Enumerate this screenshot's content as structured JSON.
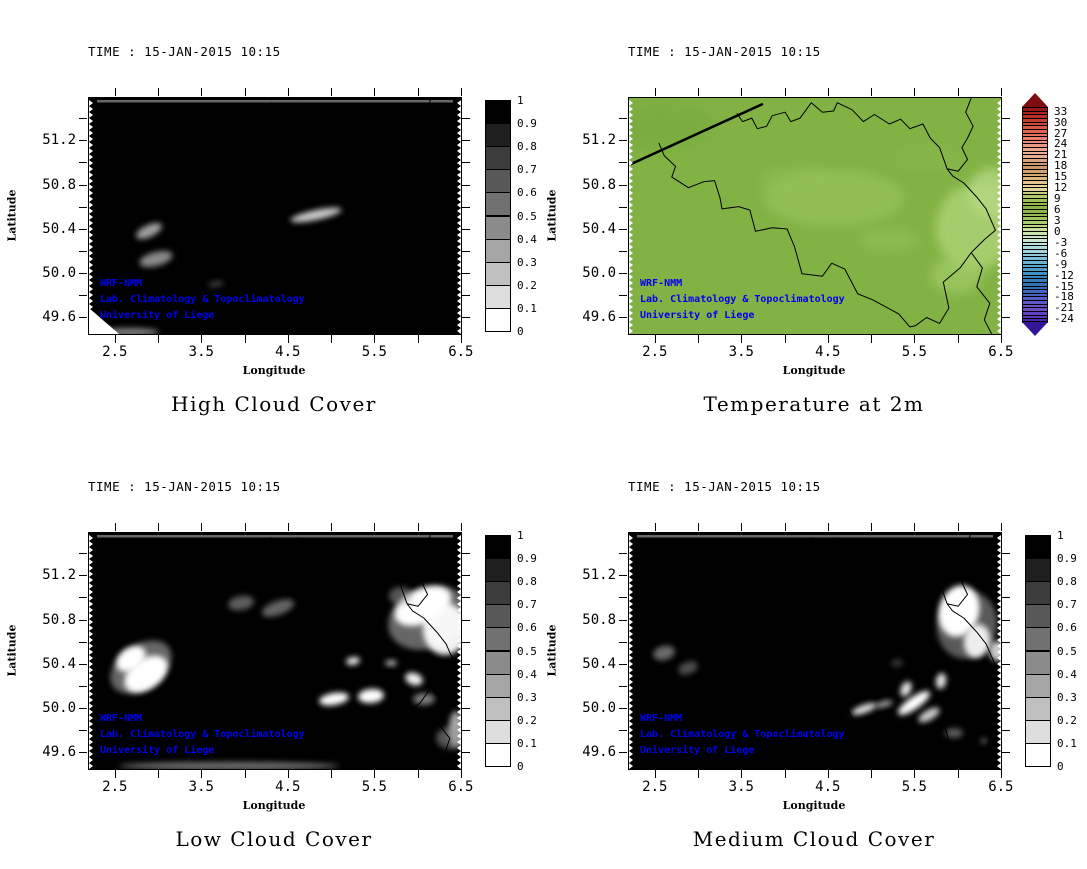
{
  "figure": {
    "description": "WRF-NMM model output, 2x2 grid of maps over Belgium for 15-JAN-2015 10:15",
    "watermark_color": "#0000ee",
    "background": "#ffffff"
  },
  "chart_data": [
    {
      "type": "heatmap",
      "panel": "top-left",
      "title": "High Cloud Cover",
      "time": "TIME : 15-JAN-2015 10:15",
      "xlabel": "Longitude",
      "ylabel": "Latitude",
      "xlim": [
        2.19,
        6.49
      ],
      "ylim": [
        49.46,
        51.59
      ],
      "x_ticks": [
        2.5,
        3.0,
        3.5,
        4.0,
        4.5,
        5.0,
        5.5,
        6.0,
        6.5
      ],
      "x_tick_labels": {
        "2.5": "2.5",
        "3.5": "3.5",
        "4.5": "4.5",
        "5.5": "5.5",
        "6.5": "6.5"
      },
      "y_ticks": [
        49.6,
        49.8,
        50.0,
        50.2,
        50.4,
        50.6,
        50.8,
        51.0,
        51.2,
        51.4
      ],
      "y_tick_labels": {
        "49.6": "49.6",
        "50": "50.0",
        "50.4": "50.4",
        "50.8": "50.8",
        "51.2": "51.2"
      },
      "colorbar": "cloud",
      "base_color": "#000000",
      "top_band": true,
      "corner_wedge": true,
      "field_summary": "Near-total high cloud cover (~1.0) everywhere; tiny brighter gaps near (3.0,50.4),(3.0,50.2),(3.5,50.1) and an elongated gap streak near (4.8,50.5); clear wedge at SW corner.",
      "features": [
        [
          60,
          133,
          14,
          6,
          -25,
          0.75,
          "#d4d4d4"
        ],
        [
          67,
          161,
          17,
          7,
          -15,
          0.7,
          "#c2c2c2"
        ],
        [
          127,
          186,
          8,
          3,
          -10,
          0.4,
          "#9a9a9a"
        ],
        [
          227,
          117,
          26,
          5,
          -12,
          0.85,
          "#ececec"
        ],
        [
          40,
          234,
          30,
          4,
          0,
          0.5,
          "#ffffff"
        ]
      ],
      "watermark": [
        "WRF-NMM",
        "Lab. Climatology & Topoclimatology",
        "University of Liege"
      ]
    },
    {
      "type": "heatmap",
      "panel": "top-right",
      "title": "Temperature at 2m",
      "time": "TIME : 15-JAN-2015 10:15",
      "xlabel": "Longitude",
      "ylabel": "Latitude",
      "xlim": [
        2.19,
        6.49
      ],
      "ylim": [
        49.46,
        51.59
      ],
      "x_ticks": [
        2.5,
        3.0,
        3.5,
        4.0,
        4.5,
        5.0,
        5.5,
        6.0,
        6.5
      ],
      "x_tick_labels": {
        "2.5": "2.5",
        "3.5": "3.5",
        "4.5": "4.5",
        "5.5": "5.5",
        "6.5": "6.5"
      },
      "y_ticks": [
        49.6,
        49.8,
        50.0,
        50.2,
        50.4,
        50.6,
        50.8,
        51.0,
        51.2,
        51.4
      ],
      "y_tick_labels": {
        "49.6": "49.6",
        "50": "50.0",
        "50.4": "50.4",
        "50.8": "50.8",
        "51.2": "51.2"
      },
      "colorbar": "temperature",
      "base_color": "#82b244",
      "top_band": false,
      "corner_wedge": false,
      "field_summary": "2m temperature roughly 3-8 C over all of Belgium (green); slightly cooler / lighter green (0-3 C) over the eastern Ardennes highlands; country borders drawn in black.",
      "features": [
        [
          205,
          100,
          70,
          28,
          0,
          0.8,
          "#94c257"
        ],
        [
          168,
          83,
          37,
          14,
          0,
          0.5,
          "#92c054"
        ],
        [
          345,
          130,
          38,
          43,
          0,
          0.9,
          "#aad172"
        ],
        [
          362,
          94,
          22,
          24,
          0,
          0.8,
          "#b6d983"
        ],
        [
          328,
          177,
          26,
          19,
          0,
          0.7,
          "#a2cc68"
        ],
        [
          260,
          142,
          30,
          12,
          0,
          0.45,
          "#97c45a"
        ],
        [
          30,
          28,
          56,
          24,
          0,
          0.5,
          "#74a83c"
        ],
        [
          300,
          60,
          40,
          14,
          0,
          0.35,
          "#8cbb4e"
        ]
      ],
      "watermark": [
        "WRF-NMM",
        "Lab. Climatology & Topoclimatology",
        "University of Liege"
      ]
    },
    {
      "type": "heatmap",
      "panel": "bottom-left",
      "title": "Low Cloud Cover",
      "time": "TIME : 15-JAN-2015 10:15",
      "xlabel": "Longitude",
      "ylabel": "Latitude",
      "xlim": [
        2.19,
        6.49
      ],
      "ylim": [
        49.46,
        51.59
      ],
      "x_ticks": [
        2.5,
        3.0,
        3.5,
        4.0,
        4.5,
        5.0,
        5.5,
        6.0,
        6.5
      ],
      "x_tick_labels": {
        "2.5": "2.5",
        "3.5": "3.5",
        "4.5": "4.5",
        "5.5": "5.5",
        "6.5": "6.5"
      },
      "y_ticks": [
        49.6,
        49.8,
        50.0,
        50.2,
        50.4,
        50.6,
        50.8,
        51.0,
        51.2,
        51.4
      ],
      "y_tick_labels": {
        "49.6": "49.6",
        "50": "50.0",
        "50.4": "50.4",
        "50.8": "50.8",
        "51.2": "51.2"
      },
      "colorbar": "cloud",
      "base_color": "#000000",
      "top_band": true,
      "corner_wedge": false,
      "field_summary": "Overcast low cloud (~1.0) with large clear (white, ~0) areas: big blob near (2.7,50.4), large clear mass along the eastern border near (6.0-6.5,50.7-51.0), cluster of clear patches near (4.9-5.8,50.0-50.3), gray patches N of Brussels and at SE corner.",
      "features": [
        [
          52,
          134,
          34,
          22,
          -35,
          0.4,
          "#ffffff"
        ],
        [
          42,
          126,
          16,
          11,
          -35,
          1,
          "#ffffff"
        ],
        [
          57,
          141,
          24,
          15,
          -35,
          1,
          "#ffffff"
        ],
        [
          152,
          70,
          13,
          7,
          -10,
          0.5,
          "#bbbbbb"
        ],
        [
          189,
          75,
          17,
          7,
          -20,
          0.55,
          "#b5b5b5"
        ],
        [
          340,
          85,
          42,
          30,
          -20,
          0.4,
          "#ffffff"
        ],
        [
          334,
          73,
          30,
          17,
          -25,
          1,
          "#ffffff"
        ],
        [
          356,
          96,
          22,
          26,
          0,
          0.95,
          "#ffffff"
        ],
        [
          312,
          63,
          12,
          9,
          0,
          0.5,
          "#aaaaaa"
        ],
        [
          264,
          128,
          7,
          4,
          -10,
          0.9,
          "#ffffff"
        ],
        [
          302,
          130,
          6,
          3,
          0,
          0.75,
          "#eeeeee"
        ],
        [
          245,
          166,
          15,
          6,
          -10,
          1,
          "#ffffff"
        ],
        [
          282,
          163,
          13,
          7,
          -5,
          1,
          "#ffffff"
        ],
        [
          325,
          146,
          9,
          6,
          20,
          0.95,
          "#ffffff"
        ],
        [
          335,
          166,
          11,
          6,
          0,
          0.6,
          "#cccccc"
        ],
        [
          367,
          196,
          7,
          18,
          0,
          0.7,
          "#eeeeee"
        ],
        [
          362,
          205,
          15,
          11,
          0,
          0.55,
          "#9a9a9a"
        ],
        [
          140,
          233,
          110,
          4,
          0,
          0.5,
          "#dddddd"
        ]
      ],
      "watermark": [
        "WRF-NMM",
        "Lab. Climatology & Topoclimatology",
        "University of Liege"
      ]
    },
    {
      "type": "heatmap",
      "panel": "bottom-right",
      "title": "Medium Cloud Cover",
      "time": "TIME : 15-JAN-2015 10:15",
      "xlabel": "Longitude",
      "ylabel": "Latitude",
      "xlim": [
        2.19,
        6.49
      ],
      "ylim": [
        49.46,
        51.59
      ],
      "x_ticks": [
        2.5,
        3.0,
        3.5,
        4.0,
        4.5,
        5.0,
        5.5,
        6.0,
        6.5
      ],
      "x_tick_labels": {
        "2.5": "2.5",
        "3.5": "3.5",
        "4.5": "4.5",
        "5.5": "5.5",
        "6.5": "6.5"
      },
      "y_ticks": [
        49.6,
        49.8,
        50.0,
        50.2,
        50.4,
        50.6,
        50.8,
        51.0,
        51.2,
        51.4
      ],
      "y_tick_labels": {
        "49.6": "49.6",
        "50": "50.0",
        "50.4": "50.4",
        "50.8": "50.8",
        "51.2": "51.2"
      },
      "colorbar": "cloud",
      "base_color": "#000000",
      "top_band": true,
      "corner_wedge": false,
      "field_summary": "Overcast medium cloud (~1.0) with clear (white) mass along the NE border near (6.0-6.4,50.8-51.0), small gray gaps near (2.6,50.4), and a cluster of clear streaks in the SE near (4.9-5.8,49.8-50.2).",
      "features": [
        [
          338,
          92,
          30,
          34,
          15,
          0.35,
          "#ffffff"
        ],
        [
          330,
          78,
          20,
          26,
          15,
          1,
          "#ffffff"
        ],
        [
          348,
          108,
          13,
          17,
          10,
          0.9,
          "#ffffff"
        ],
        [
          368,
          118,
          8,
          10,
          0,
          0.8,
          "#ffffff"
        ],
        [
          35,
          120,
          11,
          7,
          -15,
          0.55,
          "#c2c2c2"
        ],
        [
          59,
          135,
          10,
          6,
          -20,
          0.45,
          "#b0b0b0"
        ],
        [
          235,
          176,
          13,
          4,
          -20,
          0.9,
          "#ffffff"
        ],
        [
          255,
          171,
          9,
          3,
          -15,
          0.7,
          "#eeeeee"
        ],
        [
          277,
          156,
          5,
          8,
          25,
          0.9,
          "#ffffff"
        ],
        [
          285,
          170,
          19,
          6,
          -35,
          1,
          "#ffffff"
        ],
        [
          300,
          182,
          12,
          5,
          -30,
          0.8,
          "#ffffff"
        ],
        [
          312,
          148,
          5,
          8,
          10,
          0.9,
          "#ffffff"
        ],
        [
          325,
          200,
          9,
          5,
          0,
          0.5,
          "#b5b5b5"
        ],
        [
          268,
          130,
          6,
          4,
          0,
          0.35,
          "#999999"
        ],
        [
          355,
          208,
          4,
          3,
          0,
          0.5,
          "#aaaaaa"
        ]
      ],
      "watermark": [
        "WRF-NMM",
        "Lab. Climatology & Topoclimatology",
        "University of Liege"
      ]
    }
  ],
  "colorbars": {
    "cloud": {
      "range": [
        0,
        1
      ],
      "labels": [
        "1",
        "0.9",
        "0.8",
        "0.7",
        "0.6",
        "0.5",
        "0.4",
        "0.3",
        "0.2",
        "0.1",
        "0"
      ],
      "colors_top_to_bottom": [
        "#000000",
        "#1f1f1f",
        "#3d3d3d",
        "#585858",
        "#717171",
        "#8b8b8b",
        "#a5a5a5",
        "#c0c0c0",
        "#dddddd",
        "#ffffff"
      ]
    },
    "temperature": {
      "range": [
        -24,
        33
      ],
      "band_step": 1,
      "body_top_value": 34,
      "body_bottom_value": -25,
      "tick_labels": [
        "33",
        "30",
        "27",
        "24",
        "21",
        "18",
        "15",
        "12",
        "9",
        "6",
        "3",
        "0",
        "-3",
        "-6",
        "-9",
        "-12",
        "-15",
        "-18",
        "-21",
        "-24"
      ],
      "arrow_top_color": "#7e0c10",
      "arrow_bottom_color": "#341694",
      "stops": [
        [
          34,
          "#8c0f12"
        ],
        [
          33,
          "#a51c1c"
        ],
        [
          30,
          "#c94434"
        ],
        [
          27,
          "#e26a56"
        ],
        [
          24,
          "#ef9280"
        ],
        [
          21,
          "#edb39e"
        ],
        [
          18,
          "#c99264"
        ],
        [
          15,
          "#d9ae74"
        ],
        [
          12,
          "#eed7a4"
        ],
        [
          9,
          "#a3c45c"
        ],
        [
          6,
          "#82b244"
        ],
        [
          3,
          "#a2c964"
        ],
        [
          0,
          "#cbe2a2"
        ],
        [
          -3,
          "#c6e6d8"
        ],
        [
          -6,
          "#97cede"
        ],
        [
          -9,
          "#5fadd2"
        ],
        [
          -12,
          "#3a8ac0"
        ],
        [
          -15,
          "#2f6cb4"
        ],
        [
          -18,
          "#4f5ec4"
        ],
        [
          -21,
          "#6e50cc"
        ],
        [
          -24,
          "#5534b4"
        ],
        [
          -25,
          "#41209e"
        ]
      ]
    }
  },
  "map_borders": {
    "coast": {
      "width": 2.5,
      "points": [
        [
          0.005,
          0.28
        ],
        [
          0.36,
          0.025
        ]
      ]
    },
    "lines": [
      {
        "width": 1,
        "points": [
          [
            0.29,
            0.065
          ],
          [
            0.305,
            0.1
          ],
          [
            0.33,
            0.085
          ],
          [
            0.345,
            0.13
          ],
          [
            0.37,
            0.12
          ],
          [
            0.385,
            0.075
          ],
          [
            0.42,
            0.06
          ],
          [
            0.435,
            0.1
          ],
          [
            0.46,
            0.085
          ],
          [
            0.49,
            0.02
          ],
          [
            0.52,
            0.06
          ],
          [
            0.55,
            0.055
          ],
          [
            0.56,
            0.02
          ],
          [
            0.6,
            0.05
          ],
          [
            0.63,
            0.1
          ],
          [
            0.66,
            0.07
          ],
          [
            0.7,
            0.11
          ],
          [
            0.73,
            0.09
          ],
          [
            0.755,
            0.13
          ],
          [
            0.79,
            0.11
          ],
          [
            0.81,
            0.17
          ],
          [
            0.835,
            0.21
          ],
          [
            0.855,
            0.3
          ]
        ]
      },
      {
        "width": 1,
        "points": [
          [
            0.92,
            0.0
          ],
          [
            0.905,
            0.06
          ],
          [
            0.925,
            0.12
          ],
          [
            0.91,
            0.17
          ],
          [
            0.895,
            0.21
          ],
          [
            0.91,
            0.26
          ],
          [
            0.885,
            0.31
          ],
          [
            0.855,
            0.3
          ]
        ]
      },
      {
        "width": 1,
        "points": [
          [
            0.855,
            0.3
          ],
          [
            0.87,
            0.33
          ],
          [
            0.9,
            0.36
          ],
          [
            0.935,
            0.42
          ],
          [
            0.96,
            0.47
          ],
          [
            0.985,
            0.56
          ],
          [
            0.955,
            0.6
          ],
          [
            0.92,
            0.655
          ],
          [
            0.89,
            0.72
          ],
          [
            0.845,
            0.78
          ],
          [
            0.86,
            0.89
          ],
          [
            0.835,
            0.955
          ],
          [
            0.8,
            0.93
          ],
          [
            0.77,
            0.965
          ]
        ]
      },
      {
        "width": 1,
        "points": [
          [
            0.08,
            0.19
          ],
          [
            0.095,
            0.245
          ],
          [
            0.125,
            0.29
          ],
          [
            0.115,
            0.335
          ],
          [
            0.16,
            0.38
          ],
          [
            0.2,
            0.355
          ],
          [
            0.23,
            0.35
          ],
          [
            0.245,
            0.425
          ],
          [
            0.25,
            0.47
          ],
          [
            0.295,
            0.46
          ],
          [
            0.325,
            0.475
          ],
          [
            0.34,
            0.565
          ],
          [
            0.385,
            0.55
          ],
          [
            0.425,
            0.555
          ],
          [
            0.445,
            0.63
          ],
          [
            0.465,
            0.745
          ],
          [
            0.52,
            0.755
          ],
          [
            0.545,
            0.7
          ],
          [
            0.58,
            0.725
          ],
          [
            0.615,
            0.83
          ],
          [
            0.655,
            0.855
          ],
          [
            0.725,
            0.915
          ],
          [
            0.755,
            0.97
          ],
          [
            0.77,
            0.965
          ]
        ]
      },
      {
        "width": 1,
        "points": [
          [
            0.92,
            0.655
          ],
          [
            0.95,
            0.72
          ],
          [
            0.935,
            0.8
          ],
          [
            0.97,
            0.87
          ],
          [
            0.955,
            0.94
          ],
          [
            0.975,
            1.0
          ]
        ]
      }
    ]
  }
}
